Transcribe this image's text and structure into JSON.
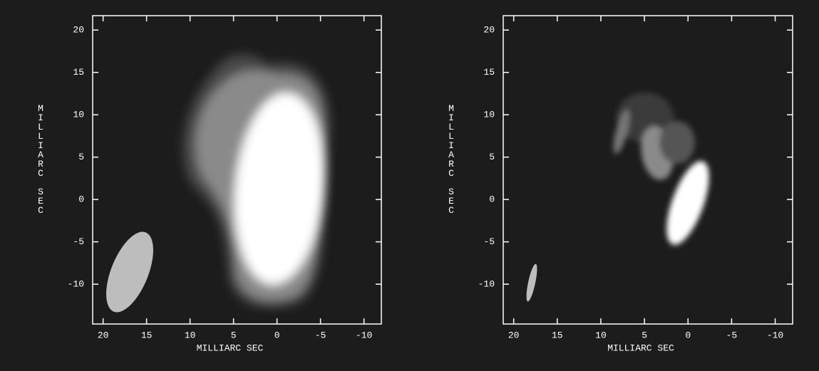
{
  "chart_data": [
    {
      "type": "image",
      "xlabel": "MILLIARC SEC",
      "ylabel": "MILLIARC SEC",
      "xlim": [
        21.2,
        -12
      ],
      "ylim": [
        -14.7,
        21.7
      ],
      "xticks": [
        20,
        15,
        10,
        5,
        0,
        -5,
        -10
      ],
      "yticks": [
        20,
        15,
        10,
        5,
        0,
        -5,
        -10
      ]
    },
    {
      "type": "image",
      "xlabel": "MILLIARC SEC",
      "ylabel": "MILLIARC SEC",
      "xlim": [
        21.2,
        -12
      ],
      "ylim": [
        -14.7,
        21.7
      ],
      "xticks": [
        20,
        15,
        10,
        5,
        0,
        -5,
        -10
      ],
      "yticks": [
        20,
        15,
        10,
        5,
        0,
        -5,
        -10
      ]
    }
  ]
}
